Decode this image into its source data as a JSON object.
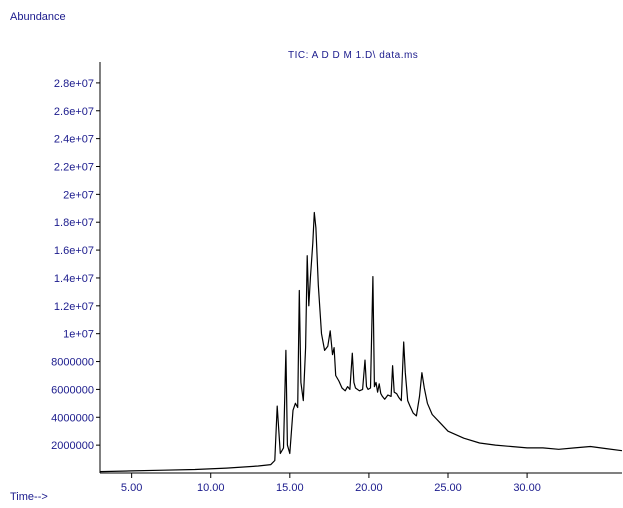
{
  "chart_data": {
    "type": "line",
    "title": "TIC: A D D M  1.D\\ data.ms",
    "ylabel": "Abundance",
    "xlabel": "Time-->",
    "xlim": [
      3.0,
      36.0
    ],
    "ylim": [
      0,
      29500000
    ],
    "x_ticks": [
      5.0,
      10.0,
      15.0,
      20.0,
      25.0,
      30.0
    ],
    "x_tick_labels": [
      "5.00",
      "10.00",
      "15.00",
      "20.00",
      "25.00",
      "30.00"
    ],
    "y_ticks": [
      2000000,
      4000000,
      6000000,
      8000000,
      10000000,
      12000000,
      14000000,
      16000000,
      18000000,
      20000000,
      22000000,
      24000000,
      26000000,
      28000000
    ],
    "y_tick_labels": [
      "2000000",
      "4000000",
      "6000000",
      "8000000",
      "1e+07",
      "1.2e+07",
      "1.4e+07",
      "1.6e+07",
      "1.8e+07",
      "2e+07",
      "2.2e+07",
      "2.4e+07",
      "2.6e+07",
      "2.8e+07"
    ],
    "grid": false,
    "colors": {
      "line": "#000000",
      "text": "#1a1a8c",
      "axis": "#000000"
    },
    "series": [
      {
        "x": [
          3.0,
          5.0,
          7.0,
          9.0,
          11.0,
          13.0,
          13.8,
          14.05,
          14.2,
          14.4,
          14.6,
          14.75,
          14.85,
          15.0,
          15.2,
          15.35,
          15.5,
          15.6,
          15.7,
          15.85,
          16.0,
          16.1,
          16.2,
          16.3,
          16.45,
          16.55,
          16.65,
          16.8,
          17.0,
          17.2,
          17.4,
          17.55,
          17.7,
          17.8,
          17.9,
          18.1,
          18.3,
          18.5,
          18.65,
          18.8,
          18.95,
          19.05,
          19.15,
          19.4,
          19.6,
          19.75,
          19.85,
          19.95,
          20.1,
          20.25,
          20.35,
          20.45,
          20.55,
          20.65,
          20.75,
          20.85,
          21.0,
          21.2,
          21.4,
          21.5,
          21.6,
          21.75,
          21.9,
          22.05,
          22.2,
          22.3,
          22.45,
          22.6,
          22.8,
          23.0,
          23.2,
          23.35,
          23.5,
          23.7,
          24.0,
          24.5,
          25.0,
          26.0,
          27.0,
          28.0,
          29.0,
          30.0,
          31.0,
          32.0,
          33.0,
          34.0,
          35.0,
          36.0
        ],
        "y": [
          100000,
          150000,
          200000,
          250000,
          350000,
          500000,
          600000,
          900000,
          4800000,
          1400000,
          1800000,
          8800000,
          2000000,
          1400000,
          4500000,
          5000000,
          4700000,
          13100000,
          6500000,
          5200000,
          9000000,
          15600000,
          12000000,
          14000000,
          16500000,
          18700000,
          17600000,
          13500000,
          10000000,
          8800000,
          9100000,
          10200000,
          8500000,
          9000000,
          7000000,
          6600000,
          6100000,
          5900000,
          6200000,
          6000000,
          8600000,
          6500000,
          6100000,
          5900000,
          6000000,
          8100000,
          6200000,
          6000000,
          6100000,
          14100000,
          6200000,
          6500000,
          5800000,
          6400000,
          5700000,
          5500000,
          5300000,
          5600000,
          5500000,
          7700000,
          5800000,
          5700000,
          5400000,
          5200000,
          9400000,
          7200000,
          5200000,
          4800000,
          4300000,
          4100000,
          5500000,
          7200000,
          6100000,
          5000000,
          4200000,
          3600000,
          3000000,
          2500000,
          2150000,
          2000000,
          1900000,
          1800000,
          1800000,
          1700000,
          1800000,
          1900000,
          1750000,
          1600000
        ]
      }
    ]
  }
}
